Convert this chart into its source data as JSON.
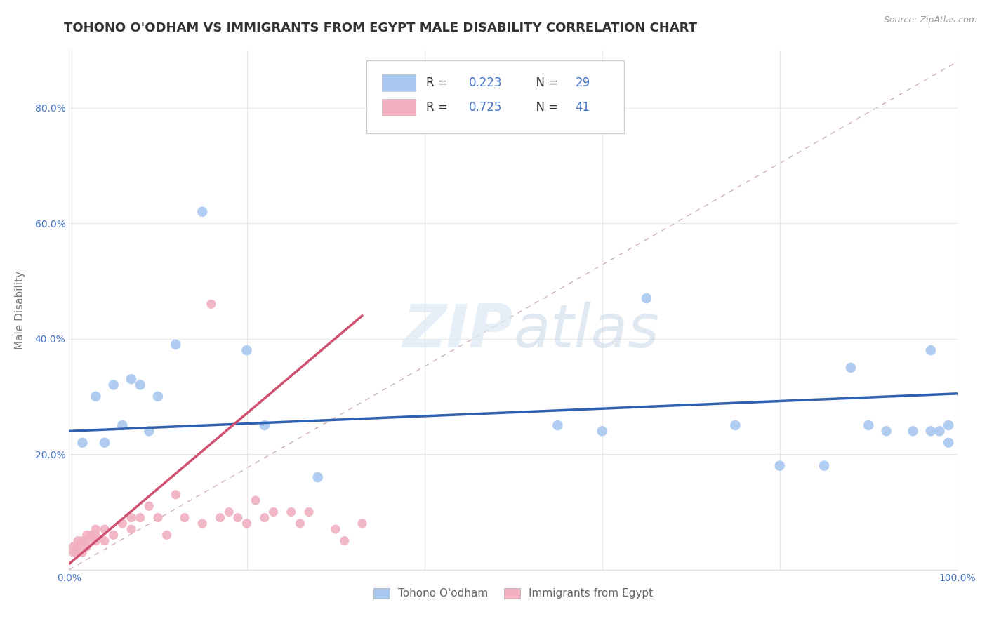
{
  "title": "TOHONO O'ODHAM VS IMMIGRANTS FROM EGYPT MALE DISABILITY CORRELATION CHART",
  "source_text": "Source: ZipAtlas.com",
  "ylabel": "Male Disability",
  "xlim": [
    0.0,
    1.0
  ],
  "ylim": [
    0.0,
    0.9
  ],
  "background_color": "#ffffff",
  "grid_color": "#e8e8e8",
  "series1_name": "Tohono O'odham",
  "series1_color": "#a8c8f0",
  "series1_R": "0.223",
  "series1_N": "29",
  "series1_x": [
    0.015,
    0.03,
    0.04,
    0.05,
    0.06,
    0.07,
    0.08,
    0.09,
    0.1,
    0.12,
    0.15,
    0.2,
    0.22,
    0.28,
    0.55,
    0.6,
    0.65,
    0.75,
    0.8,
    0.85,
    0.88,
    0.9,
    0.92,
    0.95,
    0.97,
    0.97,
    0.98,
    0.99,
    0.99
  ],
  "series1_y": [
    0.22,
    0.3,
    0.22,
    0.32,
    0.25,
    0.33,
    0.32,
    0.24,
    0.3,
    0.39,
    0.62,
    0.38,
    0.25,
    0.16,
    0.25,
    0.24,
    0.47,
    0.25,
    0.18,
    0.18,
    0.35,
    0.25,
    0.24,
    0.24,
    0.38,
    0.24,
    0.24,
    0.25,
    0.22
  ],
  "series1_trend_x": [
    0.0,
    1.0
  ],
  "series1_trend_y": [
    0.24,
    0.305
  ],
  "series2_name": "Immigrants from Egypt",
  "series2_color": "#f0b0c0",
  "series2_R": "0.725",
  "series2_N": "41",
  "series2_x": [
    0.005,
    0.005,
    0.007,
    0.01,
    0.01,
    0.015,
    0.015,
    0.02,
    0.02,
    0.02,
    0.025,
    0.03,
    0.03,
    0.03,
    0.04,
    0.04,
    0.05,
    0.06,
    0.07,
    0.07,
    0.08,
    0.09,
    0.1,
    0.11,
    0.12,
    0.13,
    0.15,
    0.17,
    0.19,
    0.2,
    0.22,
    0.25,
    0.27,
    0.3,
    0.31,
    0.33,
    0.16,
    0.18,
    0.21,
    0.23,
    0.26
  ],
  "series2_y": [
    0.03,
    0.04,
    0.03,
    0.04,
    0.05,
    0.03,
    0.05,
    0.04,
    0.05,
    0.06,
    0.06,
    0.05,
    0.06,
    0.07,
    0.05,
    0.07,
    0.06,
    0.08,
    0.07,
    0.09,
    0.09,
    0.11,
    0.09,
    0.06,
    0.13,
    0.09,
    0.08,
    0.09,
    0.09,
    0.08,
    0.09,
    0.1,
    0.1,
    0.07,
    0.05,
    0.08,
    0.46,
    0.1,
    0.12,
    0.1,
    0.08
  ],
  "series2_trend_x": [
    0.0,
    0.33
  ],
  "series2_trend_y": [
    0.01,
    0.44
  ],
  "diag_line_x": [
    0.0,
    1.0
  ],
  "diag_line_y": [
    0.0,
    0.88
  ],
  "title_fontsize": 13,
  "axis_label_fontsize": 11,
  "tick_fontsize": 10,
  "legend_fontsize": 12,
  "legend_text_color": "#333333",
  "legend_num_color": "#4472c4",
  "bottom_legend_color": "#666666"
}
